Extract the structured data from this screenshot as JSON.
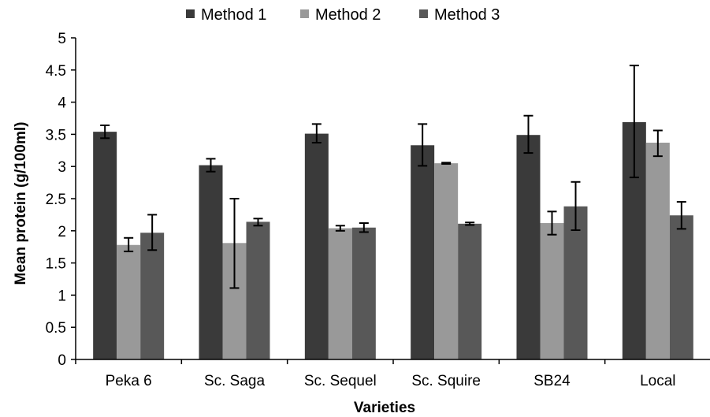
{
  "chart_data": {
    "type": "bar",
    "title": "",
    "xlabel": "Varieties",
    "ylabel": "Mean protein (g/100ml)",
    "ylim": [
      0,
      5
    ],
    "yticks": [
      "0",
      "0.5",
      "1",
      "1.5",
      "2",
      "2.5",
      "3",
      "3.5",
      "4",
      "4.5",
      "5"
    ],
    "grid": false,
    "legend_position": "top",
    "categories": [
      "Peka 6",
      "Sc. Saga",
      "Sc. Sequel",
      "Sc. Squire",
      "SB24",
      "Local"
    ],
    "series": [
      {
        "name": "Method 1",
        "color": "#3a3a3a",
        "values": [
          3.54,
          3.02,
          3.51,
          3.33,
          3.49,
          3.69
        ],
        "err_low": [
          3.44,
          2.92,
          3.37,
          3.01,
          3.21,
          2.83
        ],
        "err_high": [
          3.64,
          3.12,
          3.66,
          3.66,
          3.79,
          4.57
        ]
      },
      {
        "name": "Method 2",
        "color": "#999999",
        "values": [
          1.78,
          1.81,
          2.04,
          3.05,
          2.12,
          3.37
        ],
        "err_low": [
          1.68,
          1.11,
          2.0,
          3.04,
          1.94,
          3.16
        ],
        "err_high": [
          1.89,
          2.5,
          2.08,
          3.06,
          2.3,
          3.56
        ]
      },
      {
        "name": "Method 3",
        "color": "#585858",
        "values": [
          1.97,
          2.14,
          2.05,
          2.11,
          2.38,
          2.24
        ],
        "err_low": [
          1.7,
          2.08,
          1.98,
          2.09,
          2.01,
          2.03
        ],
        "err_high": [
          2.25,
          2.19,
          2.12,
          2.13,
          2.76,
          2.45
        ]
      }
    ]
  }
}
